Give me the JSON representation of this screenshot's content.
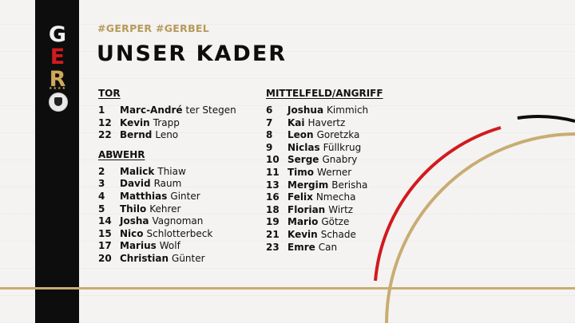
{
  "logo": {
    "letters": [
      "G",
      "E",
      "R"
    ],
    "colors": {
      "g": "#f0f0f0",
      "e": "#d21a1f",
      "r": "#cfa85a"
    },
    "crest": "dfb-eagle-crest"
  },
  "header": {
    "hashtag": "#GERPER #GERBEL",
    "title": "UNSER KADER"
  },
  "sections": {
    "tor": {
      "heading": "TOR",
      "players": [
        {
          "num": "1",
          "first": "Marc-André",
          "last": "ter Stegen"
        },
        {
          "num": "12",
          "first": "Kevin",
          "last": "Trapp"
        },
        {
          "num": "22",
          "first": "Bernd",
          "last": "Leno"
        }
      ]
    },
    "abwehr": {
      "heading": "ABWEHR",
      "players": [
        {
          "num": "2",
          "first": "Malick",
          "last": "Thiaw"
        },
        {
          "num": "3",
          "first": "David",
          "last": "Raum"
        },
        {
          "num": "4",
          "first": "Matthias",
          "last": "Ginter"
        },
        {
          "num": "5",
          "first": "Thilo",
          "last": "Kehrer"
        },
        {
          "num": "14",
          "first": "Josha",
          "last": "Vagnoman"
        },
        {
          "num": "15",
          "first": "Nico",
          "last": "Schlotterbeck"
        },
        {
          "num": "17",
          "first": "Marius",
          "last": "Wolf"
        },
        {
          "num": "20",
          "first": "Christian",
          "last": "Günter"
        }
      ]
    },
    "mittelfeld": {
      "heading": "MITTELFELD/ANGRIFF",
      "players": [
        {
          "num": "6",
          "first": "Joshua",
          "last": "Kimmich"
        },
        {
          "num": "7",
          "first": "Kai",
          "last": "Havertz"
        },
        {
          "num": "8",
          "first": "Leon",
          "last": "Goretzka"
        },
        {
          "num": "9",
          "first": "Niclas",
          "last": "Füllkrug"
        },
        {
          "num": "10",
          "first": "Serge",
          "last": "Gnabry"
        },
        {
          "num": "11",
          "first": "Timo",
          "last": "Werner"
        },
        {
          "num": "13",
          "first": "Mergim",
          "last": "Berisha"
        },
        {
          "num": "16",
          "first": "Felix",
          "last": "Nmecha"
        },
        {
          "num": "18",
          "first": "Florian",
          "last": "Wirtz"
        },
        {
          "num": "19",
          "first": "Mario",
          "last": "Götze"
        },
        {
          "num": "21",
          "first": "Kevin",
          "last": "Schade"
        },
        {
          "num": "23",
          "first": "Emre",
          "last": "Can"
        }
      ]
    }
  },
  "colors": {
    "black": "#0d0d0d",
    "red": "#d21a1f",
    "gold": "#c9ac73",
    "background": "#f4f3f1"
  }
}
